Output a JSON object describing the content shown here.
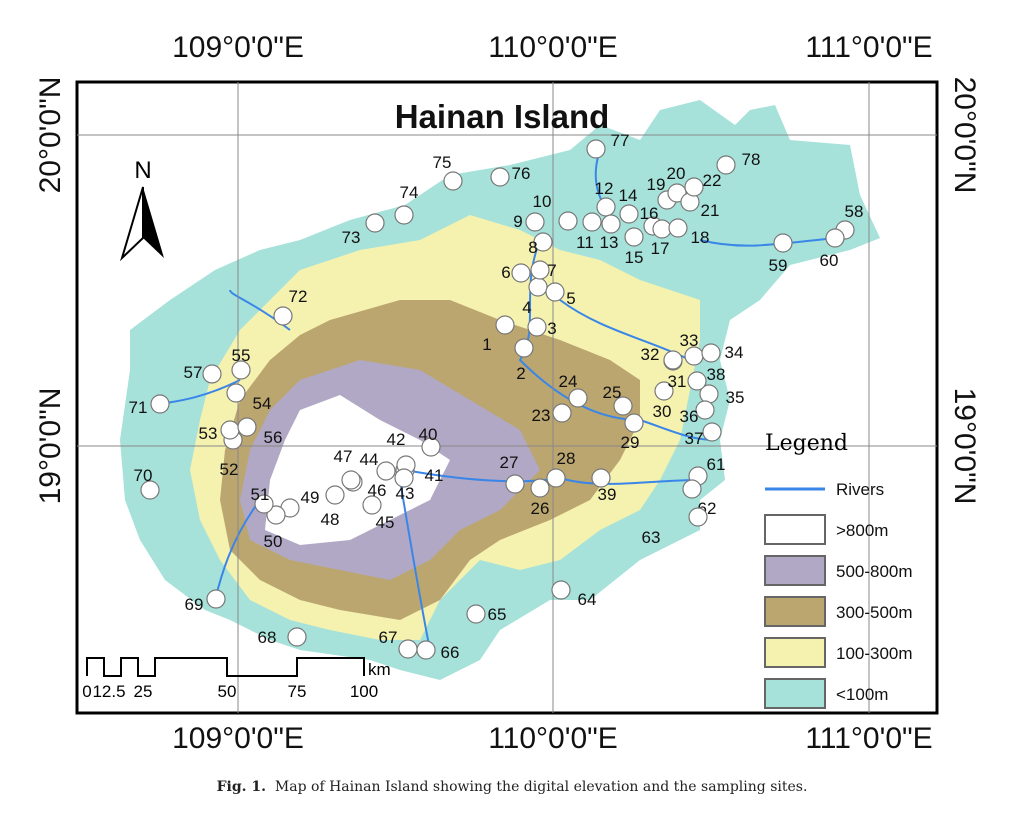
{
  "map": {
    "title": "Hainan Island",
    "north_label": "N",
    "top_ticks": [
      "109°0'0\"E",
      "110°0'0\"E",
      "111°0'0\"E"
    ],
    "bottom_ticks": [
      "109°0'0\"E",
      "110°0'0\"E",
      "111°0'0\"E"
    ],
    "left_ticks": [
      "20°0'0\"N",
      "19°0'0\"N"
    ],
    "right_ticks": [
      "20°0'0\"N",
      "19°0'0\"N"
    ],
    "scale_bar": {
      "labels": [
        "0",
        "12.5",
        "25",
        "50",
        "75",
        "100"
      ],
      "unit": "km"
    },
    "legend": {
      "title": "Legend",
      "items": [
        {
          "label": "Rivers",
          "type": "line",
          "color": "#3a86e8"
        },
        {
          "label": ">800m",
          "type": "fill",
          "color": "#ffffff"
        },
        {
          "label": "500-800m",
          "type": "fill",
          "color": "#b0a8c4"
        },
        {
          "label": "300-500m",
          "type": "fill",
          "color": "#bca670"
        },
        {
          "label": "100-300m",
          "type": "fill",
          "color": "#f5f2b0"
        },
        {
          "label": "<100m",
          "type": "fill",
          "color": "#a6e2da"
        }
      ]
    },
    "sites": [
      "1",
      "2",
      "3",
      "4",
      "5",
      "6",
      "7",
      "8",
      "9",
      "10",
      "11",
      "12",
      "13",
      "14",
      "15",
      "16",
      "17",
      "18",
      "19",
      "20",
      "21",
      "22",
      "23",
      "24",
      "25",
      "26",
      "27",
      "28",
      "29",
      "30",
      "31",
      "32",
      "33",
      "34",
      "35",
      "36",
      "37",
      "38",
      "39",
      "40",
      "41",
      "42",
      "43",
      "44",
      "45",
      "46",
      "47",
      "48",
      "49",
      "50",
      "51",
      "52",
      "53",
      "54",
      "55",
      "56",
      "57",
      "58",
      "59",
      "60",
      "61",
      "62",
      "63",
      "64",
      "65",
      "66",
      "67",
      "68",
      "69",
      "70",
      "71",
      "72",
      "73",
      "74",
      "75",
      "76",
      "77",
      "78"
    ]
  },
  "caption": {
    "label": "Fig. 1.",
    "text": "Map of Hainan Island showing the digital elevation and the sampling sites."
  }
}
